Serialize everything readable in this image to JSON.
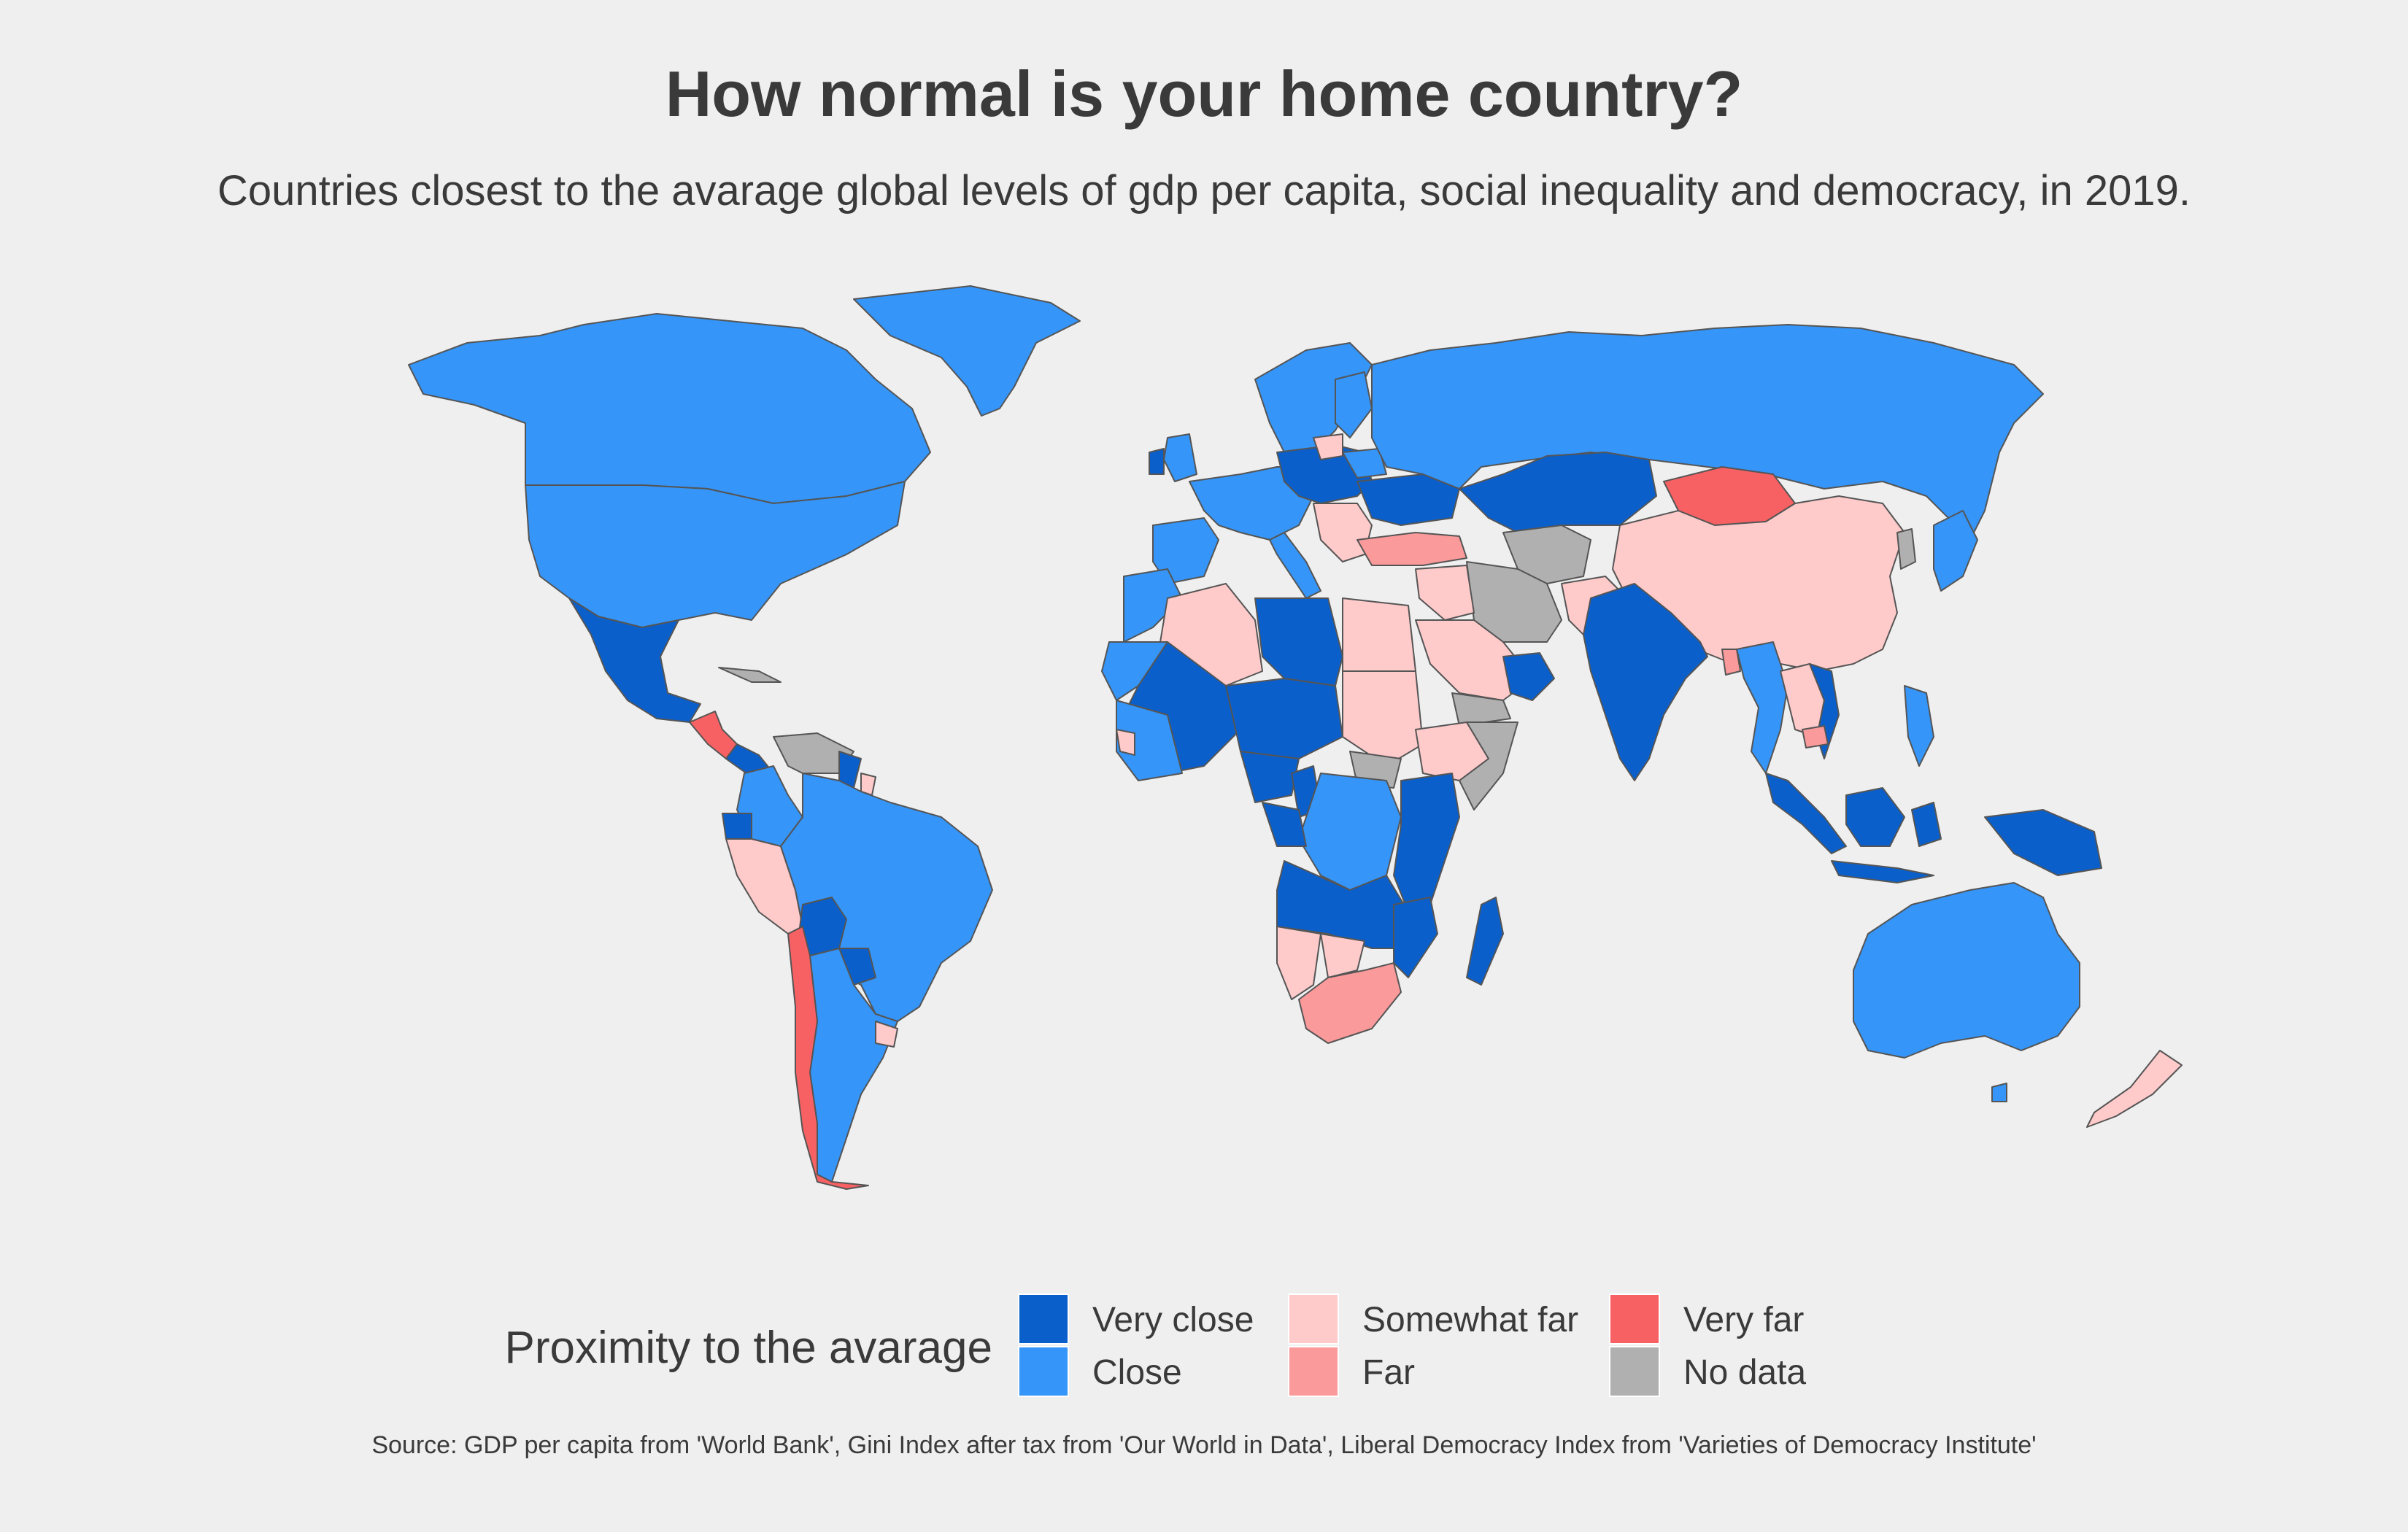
{
  "title": "How normal is your home country?",
  "subtitle": "Countries closest to the avarage global levels of gdp per capita, social inequality and democracy, in 2019.",
  "legend": {
    "title": "Proximity to the avarage",
    "items": [
      {
        "label": "Very close",
        "color": "#0a5fcb"
      },
      {
        "label": "Close",
        "color": "#3595f8"
      },
      {
        "label": "Somewhat far",
        "color": "#fecaca"
      },
      {
        "label": "Far",
        "color": "#fb9a9a"
      },
      {
        "label": "Very far",
        "color": "#f86163"
      },
      {
        "label": "No data",
        "color": "#b0b0b0"
      }
    ]
  },
  "source": "Source: GDP per capita from 'World Bank', Gini Index after tax from 'Our World in Data', Liberal Democracy Index from 'Varieties of Democracy Institute'"
}
